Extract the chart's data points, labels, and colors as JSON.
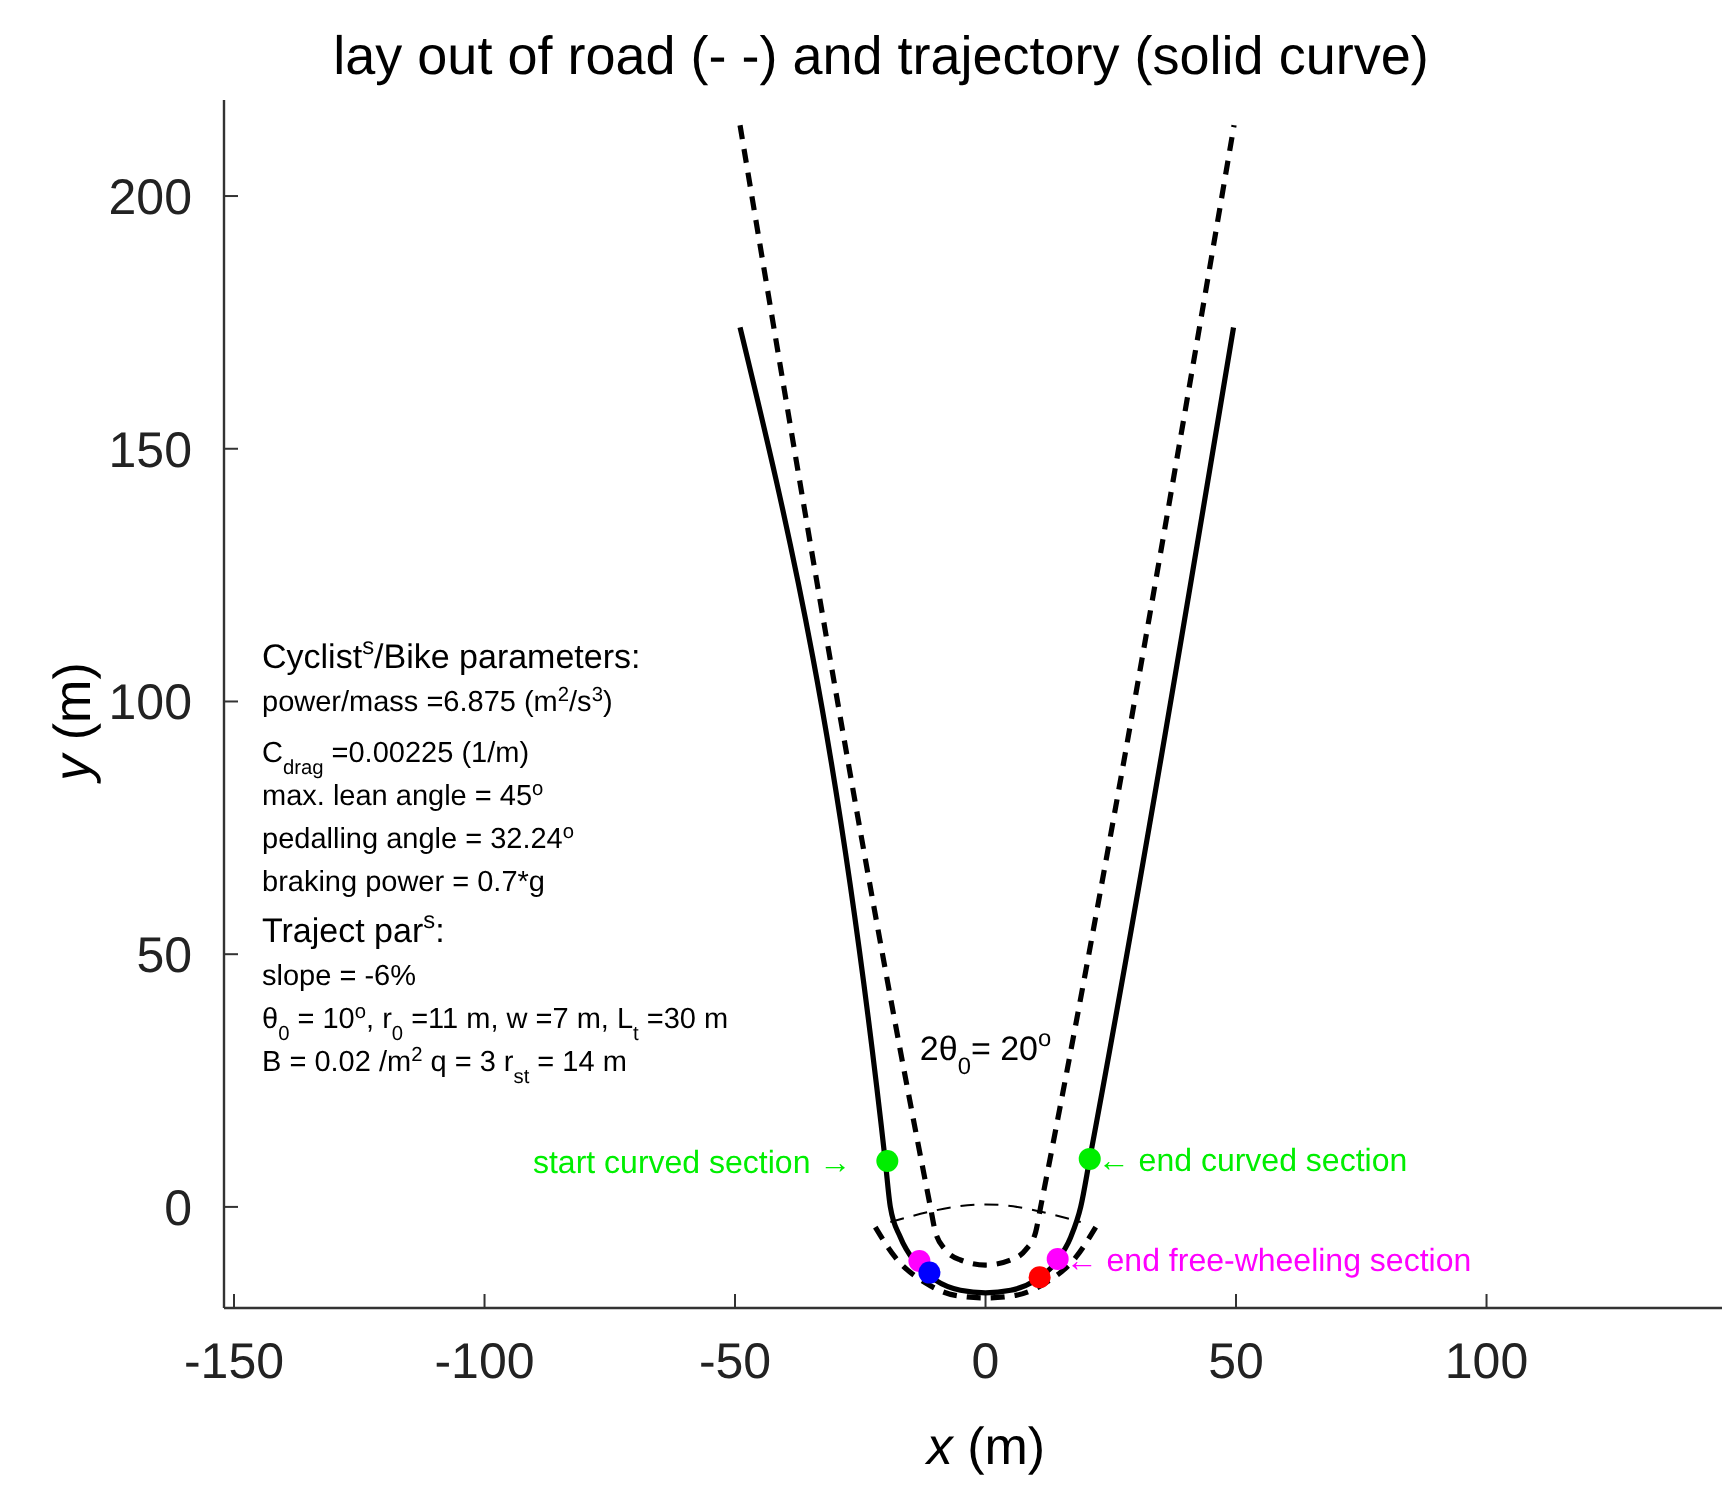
{
  "chart_data": {
    "type": "line",
    "title": "lay out of road (- -) and trajectory (solid curve)",
    "xlabel": "x  (m)",
    "ylabel": "y  (m)",
    "xlim": [
      -152,
      147
    ],
    "ylim": [
      -20,
      219
    ],
    "xticks": [
      -150,
      -100,
      -50,
      0,
      50,
      100
    ],
    "yticks": [
      0,
      50,
      100,
      150,
      200
    ],
    "grid": false,
    "series": [
      {
        "color": "#000000",
        "line_style": "solid",
        "x": [
          -49,
          -20,
          -19,
          -17,
          -14,
          -10,
          -5,
          0,
          5,
          10,
          14,
          17,
          19,
          20.8,
          49.5
        ],
        "values": [
          174,
          9,
          0,
          -6,
          -11,
          -14.5,
          -16.5,
          -17,
          -16.5,
          -14.5,
          -11,
          -6,
          0,
          9.5,
          174
        ]
      },
      {
        "color": "#000000",
        "line_style": "dashed",
        "x": [
          -49,
          -11,
          -10,
          -8,
          -5,
          0,
          5,
          8,
          10,
          11,
          49.6
        ],
        "values": [
          214,
          0,
          -5,
          -8.5,
          -10.5,
          -11.5,
          -10.5,
          -8.5,
          -5,
          0,
          214
        ]
      },
      {
        "color": "#000000",
        "line_style": "dashed",
        "x": [
          -22,
          -18,
          -12,
          -6,
          0,
          6,
          12,
          18,
          22
        ],
        "values": [
          -4,
          -10,
          -15,
          -17.5,
          -18,
          -17.5,
          -15,
          -10,
          -4
        ]
      },
      {
        "color": "#000000",
        "line_style": "dashed",
        "x": [
          -19,
          0,
          19
        ],
        "values": [
          -3,
          0.5,
          -3
        ]
      },
      {
        "type": "scatter",
        "marker": "circle",
        "x": [
          -19.6,
          -13.2,
          -11.2,
          10.8,
          14.4,
          20.8
        ],
        "values": [
          9.1,
          -10.7,
          -13,
          -13.9,
          -10.3,
          9.5
        ],
        "colors": [
          "#00ee00",
          "#ff00ff",
          "#0000ff",
          "#ff0000",
          "#ff00ff",
          "#00ee00"
        ]
      }
    ],
    "annotations": [
      {
        "text": "start curved section →",
        "x": -19.6,
        "y": 9.1
      },
      {
        "text": "← end curved section",
        "x": 20.8,
        "y": 9.5
      },
      {
        "text": "← end free-wheeling section",
        "x": 14.4,
        "y": -10.3
      },
      "2θ$_{0}$= 20$^{o}$",
      "Cyclist$^{s}$/Bike parameters:",
      "power/mass =6.875 (m$^{2}$/s$^{3}$)",
      "C$_{drag}$ =0.00225 (1/m)",
      "max. lean angle = 45$^{o}$",
      "pedalling angle = 32.24$^{o}$",
      "braking power = 0.7*g",
      "Traject par$^{s}$:",
      "slope = -6%",
      "θ$_{0}$ = 10$^{o}$,  r$_{0}$ =11 m, w =7 m,  L$_{t}$ =30 m",
      "B = 0.02 /m$^{2}$ q = 3 r$_{st}$ = 14 m"
    ]
  }
}
